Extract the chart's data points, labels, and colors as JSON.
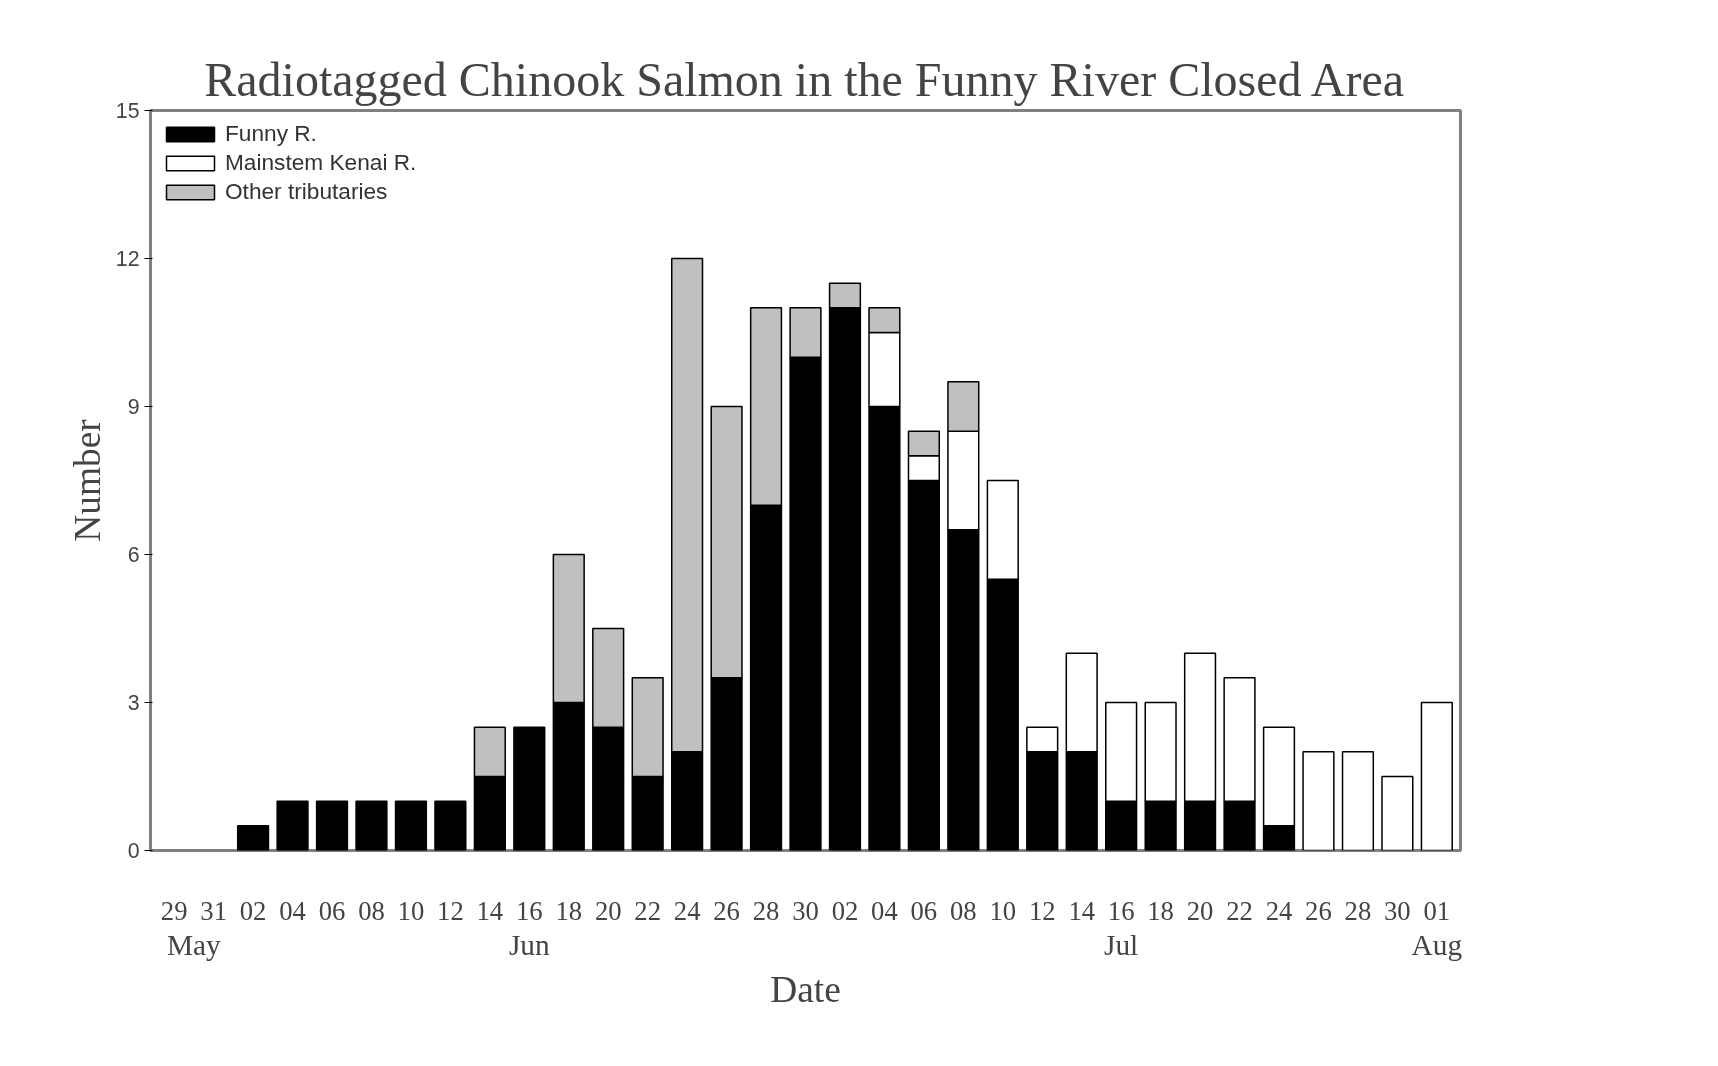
{
  "chart_data": {
    "type": "bar",
    "stacked": true,
    "title": "Radiotagged Chinook Salmon in the Funny River Closed Area",
    "xlabel": "Date",
    "ylabel": "Number",
    "categories": [
      "29",
      "31",
      "02",
      "04",
      "06",
      "08",
      "10",
      "12",
      "14",
      "16",
      "18",
      "20",
      "22",
      "24",
      "26",
      "28",
      "30",
      "02",
      "04",
      "06",
      "08",
      "10",
      "12",
      "14",
      "16",
      "18",
      "20",
      "22",
      "24",
      "26",
      "28",
      "30",
      "01"
    ],
    "series": [
      {
        "name": "Funny R.",
        "color": "#000000",
        "values": [
          0,
          0,
          0.5,
          1,
          1,
          1,
          1,
          1,
          1.5,
          2.5,
          3,
          2.5,
          1.5,
          2,
          3.5,
          7,
          10,
          11,
          9,
          7.5,
          6.5,
          5.5,
          2,
          2,
          1,
          1,
          1,
          1,
          0.5,
          0,
          0,
          0,
          0
        ]
      },
      {
        "name": "Mainstem Kenai R.",
        "color": "#ffffff",
        "values": [
          0,
          0,
          0,
          0,
          0,
          0,
          0,
          0,
          0,
          0,
          0,
          0,
          0,
          0,
          0,
          0,
          0,
          0,
          1.5,
          0.5,
          2,
          2,
          0.5,
          2,
          2,
          2,
          3,
          2.5,
          2,
          2,
          2,
          1.5,
          3
        ]
      },
      {
        "name": "Other tributaries",
        "color": "#c0c0c0",
        "values": [
          0,
          0,
          0,
          0,
          0,
          0,
          0,
          0,
          1,
          0,
          3,
          2,
          2,
          10,
          5.5,
          4,
          1,
          0.5,
          0.5,
          0.5,
          1,
          0,
          0,
          0,
          0,
          0,
          0,
          0,
          0,
          0,
          0,
          0,
          0
        ]
      }
    ],
    "annotations": [
      "May",
      "Jun",
      "Jul",
      "Aug"
    ],
    "ylim": [
      0,
      15
    ],
    "yticks": [
      0,
      3,
      6,
      9,
      12,
      15
    ],
    "grid": false,
    "legend": "top left"
  }
}
